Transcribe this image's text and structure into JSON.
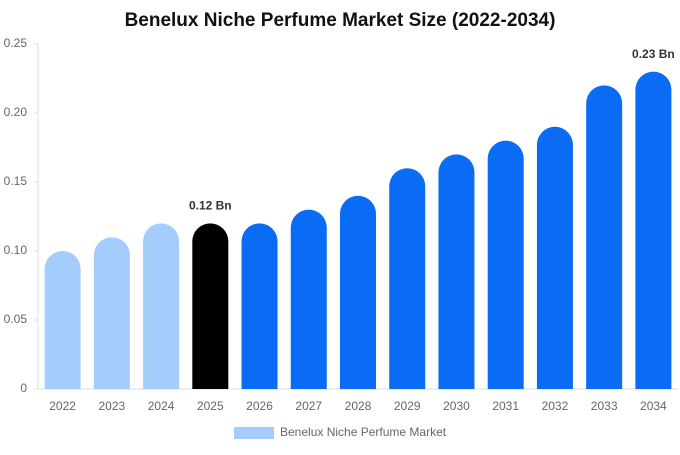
{
  "chart_data": {
    "type": "bar",
    "title": "Benelux Niche Perfume Market Size (2022-2034)",
    "categories": [
      "2022",
      "2023",
      "2024",
      "2025",
      "2026",
      "2027",
      "2028",
      "2029",
      "2030",
      "2031",
      "2032",
      "2033",
      "2034"
    ],
    "series": [
      {
        "name": "Benelux Niche Perfume Market",
        "color": "#a4cdfb",
        "values": [
          0.1,
          0.11,
          0.12,
          0.12,
          0.12,
          0.13,
          0.14,
          0.16,
          0.17,
          0.18,
          0.19,
          0.22,
          0.23
        ],
        "value_labels": [
          null,
          null,
          null,
          "0.12 Bn",
          null,
          null,
          null,
          null,
          null,
          null,
          null,
          null,
          "0.23 Bn"
        ],
        "colors": [
          "#a4cdfb",
          "#a4cdfb",
          "#a4cdfb",
          "#000000",
          "#0a6cf5",
          "#0a6cf5",
          "#0a6cf5",
          "#0a6cf5",
          "#0a6cf5",
          "#0a6cf5",
          "#0a6cf5",
          "#0a6cf5",
          "#0a6cf5"
        ]
      }
    ],
    "ylim": [
      0,
      0.25
    ],
    "yticks": [
      0,
      0.05,
      {
        "value": 0.1,
        "label": "0.10"
      },
      0.15,
      {
        "value": 0.2,
        "label": "0.20"
      },
      0.25
    ],
    "grid": false,
    "legend": "bottom"
  }
}
